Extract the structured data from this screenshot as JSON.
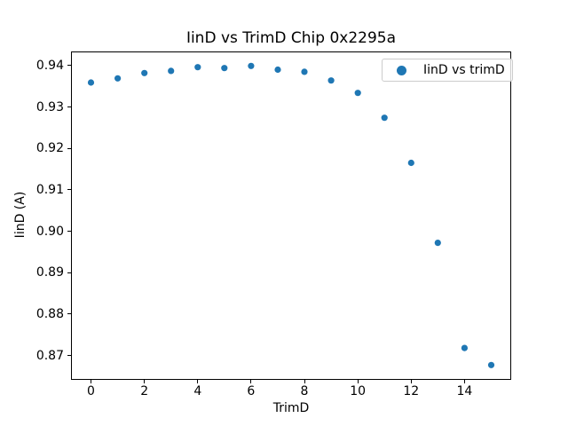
{
  "chart_data": {
    "type": "scatter",
    "title": "IinD vs TrimD Chip 0x2295a",
    "xlabel": "TrimD",
    "ylabel": "IinD (A)",
    "legend_label": "IinD vs trimD",
    "legend_position": "upper right",
    "grid": false,
    "marker_color": "#1f77b4",
    "x": [
      0,
      1,
      2,
      3,
      4,
      5,
      6,
      7,
      8,
      9,
      10,
      11,
      12,
      13,
      14,
      15
    ],
    "y": [
      0.936,
      0.937,
      0.9383,
      0.9388,
      0.9397,
      0.9395,
      0.94,
      0.9391,
      0.9386,
      0.9365,
      0.9335,
      0.9275,
      0.9166,
      0.8973,
      0.8719,
      0.8678
    ],
    "xlim": [
      -0.75,
      15.75
    ],
    "ylim": [
      0.8643,
      0.9435
    ],
    "xticklabels": [
      "0",
      "2",
      "4",
      "6",
      "8",
      "10",
      "12",
      "14"
    ],
    "yticklabels": [
      "0.87",
      "0.88",
      "0.89",
      "0.90",
      "0.91",
      "0.92",
      "0.93",
      "0.94"
    ]
  }
}
